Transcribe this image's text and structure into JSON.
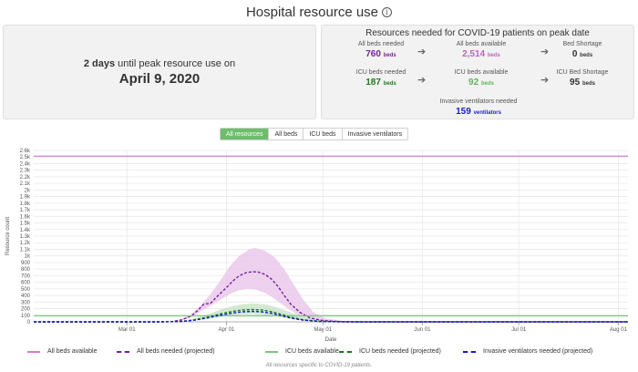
{
  "header": {
    "title": "Hospital resource use",
    "info_icon": "info-icon"
  },
  "peak": {
    "days": "2 days",
    "until_text": "until peak resource use on",
    "date": "April 9, 2020"
  },
  "resources": {
    "title": "Resources needed for COVID-19 patients on peak date",
    "all_beds_needed": {
      "label": "All beds needed",
      "value": "760",
      "unit": "beds",
      "color": "#7b1fa2"
    },
    "all_beds_available": {
      "label": "All beds available",
      "value": "2,514",
      "unit": "beds",
      "color": "#c063c0"
    },
    "bed_shortage": {
      "label": "Bed Shortage",
      "value": "0",
      "unit": "beds",
      "color": "#333333"
    },
    "icu_beds_needed": {
      "label": "ICU beds needed",
      "value": "187",
      "unit": "beds",
      "color": "#1b7a1b"
    },
    "icu_beds_available": {
      "label": "ICU beds available",
      "value": "92",
      "unit": "beds",
      "color": "#5fb45f"
    },
    "icu_bed_shortage": {
      "label": "ICU Bed Shortage",
      "value": "95",
      "unit": "beds",
      "color": "#333333"
    },
    "ventilators": {
      "label": "Invasive ventilators needed",
      "value": "159",
      "unit": "ventilators",
      "color": "#1a1acc"
    }
  },
  "toggles": [
    {
      "label": "All resources",
      "active": true
    },
    {
      "label": "All beds",
      "active": false
    },
    {
      "label": "ICU beds",
      "active": false
    },
    {
      "label": "Invasive ventilators",
      "active": false
    }
  ],
  "chart_data": {
    "type": "line",
    "xlabel": "Date",
    "ylabel": "Resource count",
    "ylim": [
      0,
      2600
    ],
    "yticks": [
      0,
      100,
      200,
      300,
      400,
      500,
      600,
      700,
      800,
      900,
      "1k",
      "1.1k",
      "1.2k",
      "1.3k",
      "1.4k",
      "1.5k",
      "1.6k",
      "1.7k",
      "1.8k",
      "1.9k",
      "2k",
      "2.1k",
      "2.2k",
      "2.3k",
      "2.4k",
      "2.5k",
      "2.6k"
    ],
    "xticks": [
      "Mar 01",
      "Apr 01",
      "May 01",
      "Jun 01",
      "Jul 01",
      "Aug 01"
    ],
    "x_range": [
      "2020-02-01",
      "2020-08-04"
    ],
    "grid": true,
    "series": [
      {
        "name": "All beds available",
        "style": "solid",
        "color": "#d57bd5",
        "points": [
          [
            "2020-02-01",
            2514
          ],
          [
            "2020-08-04",
            2514
          ]
        ]
      },
      {
        "name": "All beds needed (projected)",
        "style": "dashed",
        "color": "#7b1fa2",
        "band_color": "#e8c6ea",
        "points": [
          [
            "2020-02-01",
            0
          ],
          [
            "2020-03-10",
            0
          ],
          [
            "2020-03-15",
            5
          ],
          [
            "2020-03-18",
            30
          ],
          [
            "2020-03-21",
            90
          ],
          [
            "2020-03-23",
            170
          ],
          [
            "2020-03-25",
            270
          ],
          [
            "2020-03-27",
            280
          ],
          [
            "2020-03-29",
            380
          ],
          [
            "2020-04-01",
            520
          ],
          [
            "2020-04-03",
            620
          ],
          [
            "2020-04-05",
            700
          ],
          [
            "2020-04-07",
            745
          ],
          [
            "2020-04-09",
            760
          ],
          [
            "2020-04-11",
            755
          ],
          [
            "2020-04-13",
            720
          ],
          [
            "2020-04-15",
            650
          ],
          [
            "2020-04-17",
            540
          ],
          [
            "2020-04-19",
            400
          ],
          [
            "2020-04-21",
            270
          ],
          [
            "2020-04-24",
            140
          ],
          [
            "2020-04-27",
            60
          ],
          [
            "2020-05-01",
            20
          ],
          [
            "2020-05-06",
            5
          ],
          [
            "2020-05-12",
            0
          ],
          [
            "2020-08-04",
            0
          ]
        ],
        "upper": [
          [
            "2020-03-10",
            0
          ],
          [
            "2020-03-15",
            10
          ],
          [
            "2020-03-18",
            40
          ],
          [
            "2020-03-21",
            110
          ],
          [
            "2020-03-24",
            250
          ],
          [
            "2020-03-27",
            420
          ],
          [
            "2020-03-30",
            620
          ],
          [
            "2020-04-02",
            840
          ],
          [
            "2020-04-05",
            1000
          ],
          [
            "2020-04-08",
            1100
          ],
          [
            "2020-04-10",
            1120
          ],
          [
            "2020-04-13",
            1080
          ],
          [
            "2020-04-16",
            980
          ],
          [
            "2020-04-19",
            800
          ],
          [
            "2020-04-22",
            560
          ],
          [
            "2020-04-25",
            330
          ],
          [
            "2020-04-28",
            150
          ],
          [
            "2020-05-02",
            50
          ],
          [
            "2020-05-08",
            10
          ],
          [
            "2020-05-15",
            0
          ]
        ],
        "lower": [
          [
            "2020-03-10",
            0
          ],
          [
            "2020-03-15",
            2
          ],
          [
            "2020-03-18",
            20
          ],
          [
            "2020-03-21",
            70
          ],
          [
            "2020-03-24",
            160
          ],
          [
            "2020-03-27",
            240
          ],
          [
            "2020-03-30",
            330
          ],
          [
            "2020-04-02",
            420
          ],
          [
            "2020-04-05",
            480
          ],
          [
            "2020-04-08",
            500
          ],
          [
            "2020-04-10",
            490
          ],
          [
            "2020-04-13",
            440
          ],
          [
            "2020-04-16",
            350
          ],
          [
            "2020-04-19",
            240
          ],
          [
            "2020-04-22",
            140
          ],
          [
            "2020-04-25",
            70
          ],
          [
            "2020-04-28",
            30
          ],
          [
            "2020-05-02",
            10
          ],
          [
            "2020-05-08",
            2
          ],
          [
            "2020-05-15",
            0
          ]
        ]
      },
      {
        "name": "ICU beds available",
        "style": "solid",
        "color": "#7cc47c",
        "points": [
          [
            "2020-02-01",
            92
          ],
          [
            "2020-08-04",
            92
          ]
        ]
      },
      {
        "name": "ICU beds needed (projected)",
        "style": "dashed",
        "color": "#1b7a1b",
        "band_color": "#c8e2c8",
        "points": [
          [
            "2020-02-01",
            0
          ],
          [
            "2020-03-12",
            0
          ],
          [
            "2020-03-18",
            8
          ],
          [
            "2020-03-22",
            30
          ],
          [
            "2020-03-26",
            70
          ],
          [
            "2020-03-30",
            120
          ],
          [
            "2020-04-03",
            160
          ],
          [
            "2020-04-06",
            180
          ],
          [
            "2020-04-09",
            187
          ],
          [
            "2020-04-12",
            180
          ],
          [
            "2020-04-15",
            155
          ],
          [
            "2020-04-18",
            115
          ],
          [
            "2020-04-21",
            70
          ],
          [
            "2020-04-25",
            30
          ],
          [
            "2020-04-30",
            8
          ],
          [
            "2020-05-08",
            0
          ],
          [
            "2020-08-04",
            0
          ]
        ],
        "upper": [
          [
            "2020-03-12",
            0
          ],
          [
            "2020-03-20",
            20
          ],
          [
            "2020-03-26",
            110
          ],
          [
            "2020-03-31",
            200
          ],
          [
            "2020-04-05",
            260
          ],
          [
            "2020-04-09",
            280
          ],
          [
            "2020-04-13",
            265
          ],
          [
            "2020-04-17",
            215
          ],
          [
            "2020-04-21",
            140
          ],
          [
            "2020-04-26",
            60
          ],
          [
            "2020-05-02",
            15
          ],
          [
            "2020-05-10",
            0
          ]
        ],
        "lower": [
          [
            "2020-03-12",
            0
          ],
          [
            "2020-03-20",
            8
          ],
          [
            "2020-03-26",
            40
          ],
          [
            "2020-03-31",
            80
          ],
          [
            "2020-04-05",
            110
          ],
          [
            "2020-04-09",
            118
          ],
          [
            "2020-04-13",
            108
          ],
          [
            "2020-04-17",
            80
          ],
          [
            "2020-04-21",
            45
          ],
          [
            "2020-04-26",
            15
          ],
          [
            "2020-05-02",
            3
          ],
          [
            "2020-05-10",
            0
          ]
        ]
      },
      {
        "name": "Invasive ventilators needed (projected)",
        "style": "dashed",
        "color": "#1a1acc",
        "points": [
          [
            "2020-02-01",
            0
          ],
          [
            "2020-03-12",
            0
          ],
          [
            "2020-03-18",
            6
          ],
          [
            "2020-03-22",
            25
          ],
          [
            "2020-03-26",
            60
          ],
          [
            "2020-03-30",
            100
          ],
          [
            "2020-04-03",
            135
          ],
          [
            "2020-04-06",
            152
          ],
          [
            "2020-04-09",
            159
          ],
          [
            "2020-04-12",
            152
          ],
          [
            "2020-04-15",
            130
          ],
          [
            "2020-04-18",
            95
          ],
          [
            "2020-04-21",
            58
          ],
          [
            "2020-04-25",
            25
          ],
          [
            "2020-04-30",
            6
          ],
          [
            "2020-05-08",
            0
          ],
          [
            "2020-08-04",
            0
          ]
        ]
      }
    ]
  },
  "footnote": "All resources specific to COVID-19 patients."
}
